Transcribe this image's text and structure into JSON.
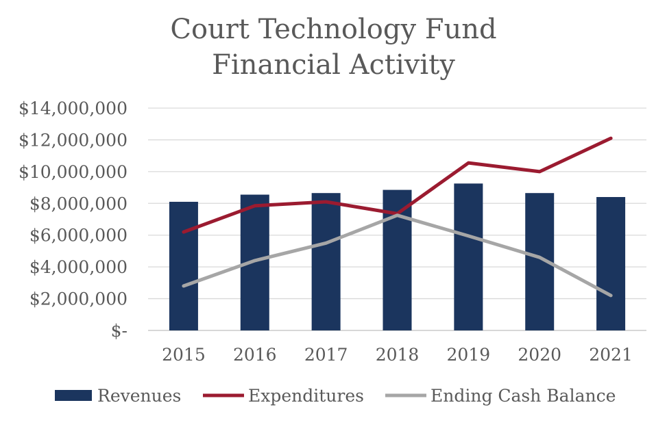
{
  "chart_data": {
    "type": "bar",
    "title": [
      "Court Technology Fund",
      "Financial Activity"
    ],
    "categories": [
      "2015",
      "2016",
      "2017",
      "2018",
      "2019",
      "2020",
      "2021"
    ],
    "y_tick_labels": [
      "$-",
      "$2,000,000",
      "$4,000,000",
      "$6,000,000",
      "$8,000,000",
      "$10,000,000",
      "$12,000,000",
      "$14,000,000"
    ],
    "ylim": [
      0,
      14000000
    ],
    "y_step": 2000000,
    "grid": true,
    "legend_position": "bottom",
    "series": [
      {
        "name": "Revenues",
        "type": "bar",
        "color": "#1b355e",
        "values": [
          8100000,
          8550000,
          8650000,
          8850000,
          9250000,
          8650000,
          8400000
        ]
      },
      {
        "name": "Expenditures",
        "type": "line",
        "color": "#9b1b30",
        "values": [
          6200000,
          7850000,
          8100000,
          7350000,
          10550000,
          10000000,
          12100000
        ]
      },
      {
        "name": "Ending Cash Balance",
        "type": "line",
        "color": "#a6a6a6",
        "values": [
          2800000,
          4400000,
          5500000,
          7250000,
          5950000,
          4600000,
          2200000
        ]
      }
    ]
  }
}
